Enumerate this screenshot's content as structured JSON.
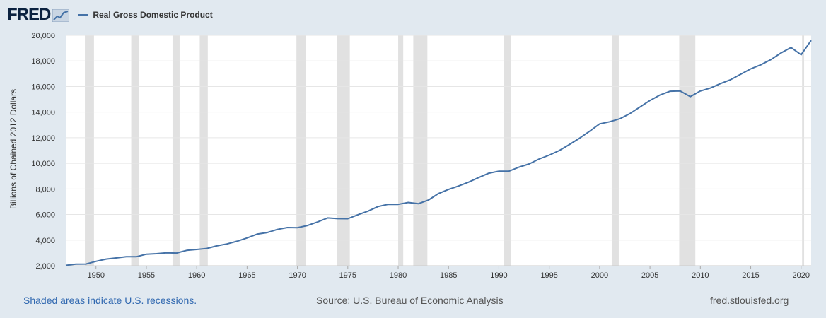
{
  "header": {
    "logo_text": "FRED",
    "series_label": "Real Gross Domestic Product"
  },
  "footer": {
    "recession_note": "Shaded areas indicate U.S. recessions.",
    "source": "Source: U.S. Bureau of Economic Analysis",
    "site": "fred.stlouisfed.org"
  },
  "colors": {
    "background": "#e1e9f0",
    "plot_background": "#ffffff",
    "line": "#4572a7",
    "recession_shade": "#e1e1e1",
    "gridline": "#e6e6e6"
  },
  "chart_data": {
    "type": "line",
    "title": "",
    "xlabel": "",
    "ylabel": "Billions of Chained 2012 Dollars",
    "xlim": [
      1947,
      2021
    ],
    "ylim": [
      2000,
      20000
    ],
    "grid": true,
    "legend": "top-left",
    "x_ticks": [
      1950,
      1955,
      1960,
      1965,
      1970,
      1975,
      1980,
      1985,
      1990,
      1995,
      2000,
      2005,
      2010,
      2015,
      2020
    ],
    "y_ticks": [
      2000,
      4000,
      6000,
      8000,
      10000,
      12000,
      14000,
      16000,
      18000,
      20000
    ],
    "y_tick_labels": [
      "2,000",
      "4,000",
      "6,000",
      "8,000",
      "10,000",
      "12,000",
      "14,000",
      "16,000",
      "18,000",
      "20,000"
    ],
    "recessions": [
      [
        1948.9,
        1949.8
      ],
      [
        1953.5,
        1954.3
      ],
      [
        1957.6,
        1958.3
      ],
      [
        1960.3,
        1961.1
      ],
      [
        1969.9,
        1970.8
      ],
      [
        1973.9,
        1975.2
      ],
      [
        1980.0,
        1980.5
      ],
      [
        1981.5,
        1982.9
      ],
      [
        1990.5,
        1991.2
      ],
      [
        2001.2,
        2001.9
      ],
      [
        2007.9,
        2009.5
      ],
      [
        2020.1,
        2020.3
      ]
    ],
    "series": [
      {
        "name": "Real Gross Domestic Product",
        "x": [
          1947,
          1948,
          1949,
          1950,
          1951,
          1952,
          1953,
          1954,
          1955,
          1956,
          1957,
          1958,
          1959,
          1960,
          1961,
          1962,
          1963,
          1964,
          1965,
          1966,
          1967,
          1968,
          1969,
          1970,
          1971,
          1972,
          1973,
          1974,
          1975,
          1976,
          1977,
          1978,
          1979,
          1980,
          1981,
          1982,
          1983,
          1984,
          1985,
          1986,
          1987,
          1988,
          1989,
          1990,
          1991,
          1992,
          1993,
          1994,
          1995,
          1996,
          1997,
          1998,
          1999,
          2000,
          2001,
          2002,
          2003,
          2004,
          2005,
          2006,
          2007,
          2008,
          2009,
          2010,
          2011,
          2012,
          2013,
          2014,
          2015,
          2016,
          2017,
          2018,
          2019,
          2020,
          2021
        ],
        "values": [
          2030,
          2120,
          2130,
          2340,
          2520,
          2610,
          2700,
          2700,
          2900,
          2940,
          3010,
          2990,
          3200,
          3270,
          3350,
          3550,
          3700,
          3910,
          4170,
          4470,
          4590,
          4830,
          4980,
          4970,
          5140,
          5420,
          5730,
          5680,
          5670,
          5980,
          6260,
          6620,
          6800,
          6790,
          6940,
          6840,
          7130,
          7640,
          7960,
          8230,
          8530,
          8890,
          9230,
          9390,
          9390,
          9700,
          9950,
          10340,
          10640,
          11000,
          11470,
          11960,
          12500,
          13080,
          13250,
          13480,
          13880,
          14400,
          14910,
          15340,
          15630,
          15650,
          15210,
          15650,
          15880,
          16230,
          16530,
          16960,
          17380,
          17700,
          18100,
          18620,
          19050,
          18480,
          19600
        ]
      }
    ]
  }
}
